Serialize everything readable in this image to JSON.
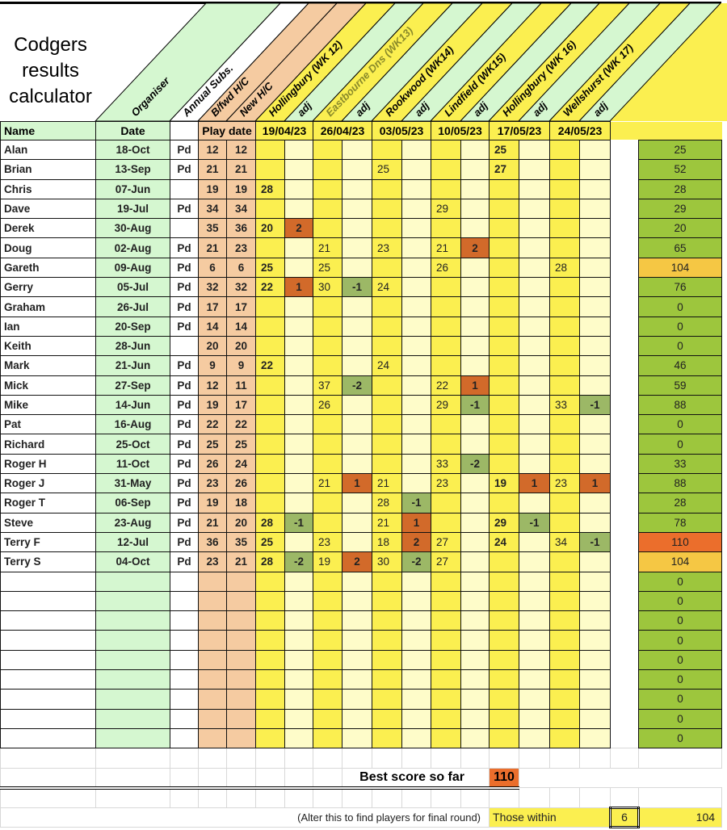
{
  "title": "Codgers results calculator",
  "column_headers": {
    "organiser": "Organiser",
    "annual_subs": "Annual Subs.",
    "bfwd_hc": "B/fwd H/C",
    "new_hc": "New H/C",
    "rounds": [
      "Hollingbury (WK 12)",
      "Eastbourne Dns (WK13)",
      "Rookwood (WK14)",
      "Lindfield (WK15)",
      "Hollingbury (WK 16)",
      "Wellshurst (WK 17)"
    ],
    "adj": "adj"
  },
  "header_row": {
    "name": "Name",
    "date": "Date",
    "play_date": "Play date",
    "dates": [
      "19/04/23",
      "26/04/23",
      "03/05/23",
      "10/05/23",
      "17/05/23",
      "24/05/23"
    ]
  },
  "colors": {
    "score": "#fbef50",
    "adj_col": "#fefcc9",
    "adj_positive": "#d26a2a",
    "adj_negative": "#9cb866",
    "total": "#9dc63d",
    "near_best": "#f5c744",
    "best": "#eb6e2c",
    "organiser": "#d5f7d0",
    "handicap": "#f5cba1"
  },
  "players": [
    {
      "name": "Alan",
      "date": "18-Oct",
      "pd": "Pd",
      "bfwd": "12",
      "new": "12",
      "cells": [
        "",
        "",
        "",
        "",
        "",
        "",
        "",
        "",
        "25",
        "",
        "",
        ""
      ],
      "total": "25"
    },
    {
      "name": "Brian",
      "date": "13-Sep",
      "pd": "Pd",
      "bfwd": "21",
      "new": "21",
      "cells": [
        "",
        "",
        "",
        "",
        "25",
        "",
        "",
        "",
        "27",
        "",
        "",
        ""
      ],
      "total": "52"
    },
    {
      "name": "Chris",
      "date": "07-Jun",
      "pd": "",
      "bfwd": "19",
      "new": "19",
      "cells": [
        "28",
        "",
        "",
        "",
        "",
        "",
        "",
        "",
        "",
        "",
        "",
        ""
      ],
      "total": "28"
    },
    {
      "name": "Dave",
      "date": "19-Jul",
      "pd": "Pd",
      "bfwd": "34",
      "new": "34",
      "cells": [
        "",
        "",
        "",
        "",
        "",
        "",
        "29",
        "",
        "",
        "",
        "",
        ""
      ],
      "total": "29"
    },
    {
      "name": "Derek",
      "date": "30-Aug",
      "pd": "",
      "bfwd": "35",
      "new": "36",
      "cells": [
        "20",
        "2",
        "",
        "",
        "",
        "",
        "",
        "",
        "",
        "",
        "",
        ""
      ],
      "total": "20"
    },
    {
      "name": "Doug",
      "date": "02-Aug",
      "pd": "Pd",
      "bfwd": "21",
      "new": "23",
      "cells": [
        "",
        "",
        "21",
        "",
        "23",
        "",
        "21",
        "2",
        "",
        "",
        "",
        ""
      ],
      "total": "65"
    },
    {
      "name": "Gareth",
      "date": "09-Aug",
      "pd": "Pd",
      "bfwd": "6",
      "new": "6",
      "cells": [
        "25",
        "",
        "25",
        "",
        "",
        "",
        "26",
        "",
        "",
        "",
        "28",
        ""
      ],
      "total": "104",
      "status": "near"
    },
    {
      "name": "Gerry",
      "date": "05-Jul",
      "pd": "Pd",
      "bfwd": "32",
      "new": "32",
      "cells": [
        "22",
        "1",
        "30",
        "-1",
        "24",
        "",
        "",
        "",
        "",
        "",
        "",
        ""
      ],
      "total": "76"
    },
    {
      "name": "Graham",
      "date": "26-Jul",
      "pd": "Pd",
      "bfwd": "17",
      "new": "17",
      "cells": [
        "",
        "",
        "",
        "",
        "",
        "",
        "",
        "",
        "",
        "",
        "",
        ""
      ],
      "total": "0"
    },
    {
      "name": "Ian",
      "date": "20-Sep",
      "pd": "Pd",
      "bfwd": "14",
      "new": "14",
      "cells": [
        "",
        "",
        "",
        "",
        "",
        "",
        "",
        "",
        "",
        "",
        "",
        ""
      ],
      "total": "0"
    },
    {
      "name": "Keith",
      "date": "28-Jun",
      "pd": "",
      "bfwd": "20",
      "new": "20",
      "cells": [
        "",
        "",
        "",
        "",
        "",
        "",
        "",
        "",
        "",
        "",
        "",
        ""
      ],
      "total": "0"
    },
    {
      "name": "Mark",
      "date": "21-Jun",
      "pd": "Pd",
      "bfwd": "9",
      "new": "9",
      "cells": [
        "22",
        "",
        "",
        "",
        "24",
        "",
        "",
        "",
        "",
        "",
        "",
        ""
      ],
      "total": "46"
    },
    {
      "name": "Mick",
      "date": "27-Sep",
      "pd": "Pd",
      "bfwd": "12",
      "new": "11",
      "cells": [
        "",
        "",
        "37",
        "-2",
        "",
        "",
        "22",
        "1",
        "",
        "",
        "",
        ""
      ],
      "total": "59"
    },
    {
      "name": "Mike",
      "date": "14-Jun",
      "pd": "Pd",
      "bfwd": "19",
      "new": "17",
      "cells": [
        "",
        "",
        "26",
        "",
        "",
        "",
        "29",
        "-1",
        "",
        "",
        "33",
        "-1"
      ],
      "total": "88"
    },
    {
      "name": "Pat",
      "date": "16-Aug",
      "pd": "Pd",
      "bfwd": "22",
      "new": "22",
      "cells": [
        "",
        "",
        "",
        "",
        "",
        "",
        "",
        "",
        "",
        "",
        "",
        ""
      ],
      "total": "0"
    },
    {
      "name": "Richard",
      "date": "25-Oct",
      "pd": "Pd",
      "bfwd": "25",
      "new": "25",
      "cells": [
        "",
        "",
        "",
        "",
        "",
        "",
        "",
        "",
        "",
        "",
        "",
        ""
      ],
      "total": "0"
    },
    {
      "name": "Roger H",
      "date": "11-Oct",
      "pd": "Pd",
      "bfwd": "26",
      "new": "24",
      "cells": [
        "",
        "",
        "",
        "",
        "",
        "",
        "33",
        "-2",
        "",
        "",
        "",
        ""
      ],
      "total": "33"
    },
    {
      "name": "Roger J",
      "date": "31-May",
      "pd": "Pd",
      "bfwd": "23",
      "new": "26",
      "cells": [
        "",
        "",
        "21",
        "1",
        "21",
        "",
        "23",
        "",
        "19",
        "1",
        "23",
        "1"
      ],
      "total": "88"
    },
    {
      "name": "Roger T",
      "date": "06-Sep",
      "pd": "Pd",
      "bfwd": "19",
      "new": "18",
      "cells": [
        "",
        "",
        "",
        "",
        "28",
        "-1",
        "",
        "",
        "",
        "",
        "",
        ""
      ],
      "total": "28"
    },
    {
      "name": "Steve",
      "date": "23-Aug",
      "pd": "Pd",
      "bfwd": "21",
      "new": "20",
      "cells": [
        "28",
        "-1",
        "",
        "",
        "21",
        "1",
        "",
        "",
        "29",
        "-1",
        "",
        ""
      ],
      "total": "78"
    },
    {
      "name": "Terry F",
      "date": "12-Jul",
      "pd": "Pd",
      "bfwd": "36",
      "new": "35",
      "cells": [
        "25",
        "",
        "23",
        "",
        "18",
        "2",
        "27",
        "",
        "24",
        "",
        "34",
        "-1"
      ],
      "total": "110",
      "status": "best"
    },
    {
      "name": "Terry S",
      "date": "04-Oct",
      "pd": "Pd",
      "bfwd": "23",
      "new": "21",
      "cells": [
        "28",
        "-2",
        "19",
        "2",
        "30",
        "-2",
        "27",
        "",
        "",
        "",
        "",
        ""
      ],
      "total": "104",
      "status": "near"
    }
  ],
  "empty_rows_totals": [
    "0",
    "0",
    "0",
    "0",
    "0",
    "0",
    "0",
    "0",
    "0"
  ],
  "footer": {
    "best_label": "Best score so far",
    "best_value": "110",
    "note": "(Alter this to find players for final round)",
    "within_label": "Those within",
    "within_value": "6",
    "within_result": "104"
  }
}
